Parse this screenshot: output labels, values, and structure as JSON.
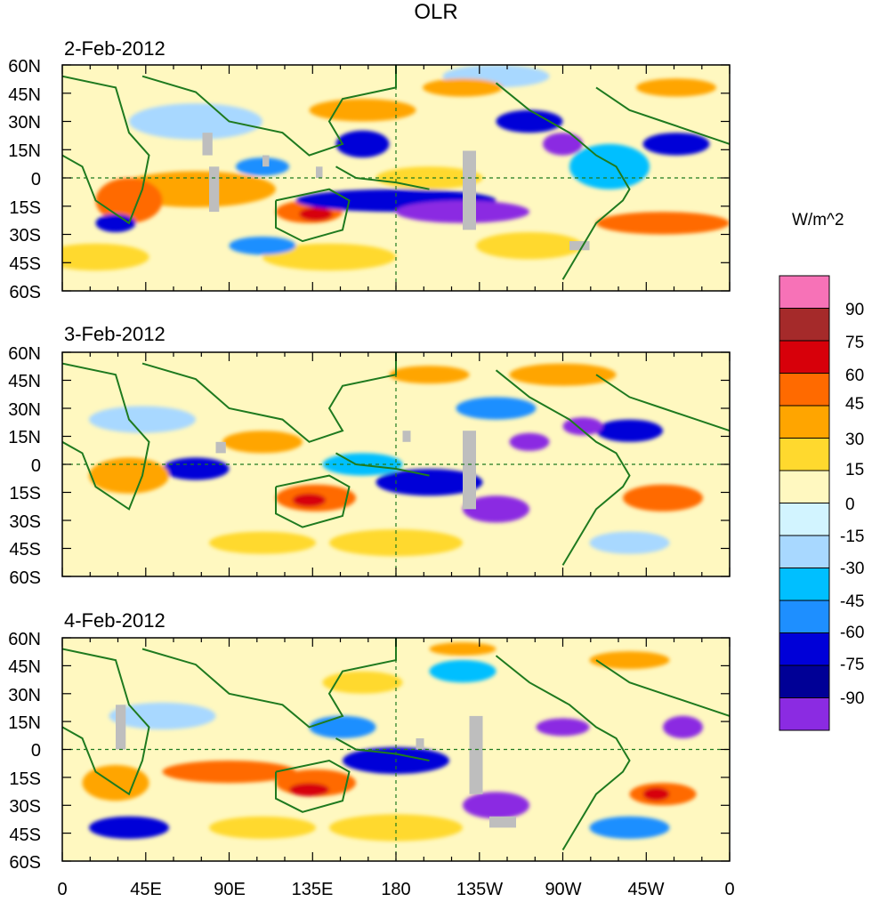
{
  "title": "OLR",
  "units": "W/m^2",
  "panels": [
    {
      "date": "2-Feb-2012"
    },
    {
      "date": "3-Feb-2012"
    },
    {
      "date": "4-Feb-2012"
    }
  ],
  "lat_labels": [
    "60N",
    "45N",
    "30N",
    "15N",
    "0",
    "15S",
    "30S",
    "45S",
    "60S"
  ],
  "lon_labels": [
    "0",
    "45E",
    "90E",
    "135E",
    "180",
    "135W",
    "90W",
    "45W",
    "0"
  ],
  "colorbar": {
    "labels": [
      "90",
      "75",
      "60",
      "45",
      "30",
      "15",
      "0",
      "-15",
      "-30",
      "-45",
      "-60",
      "-75",
      "-90"
    ],
    "colors": [
      "#f772b7",
      "#a52a2a",
      "#d7000a",
      "#ff6a00",
      "#ffa500",
      "#ffd92e",
      "#fff8c0",
      "#d2f4ff",
      "#a8d8ff",
      "#00bfff",
      "#1e8fff",
      "#0000d8",
      "#000096",
      "#8b2be2"
    ]
  },
  "colors": {
    "coast": "#1f7a1f",
    "missing": "#bebebe",
    "dashline": "#1f7a1f"
  }
}
